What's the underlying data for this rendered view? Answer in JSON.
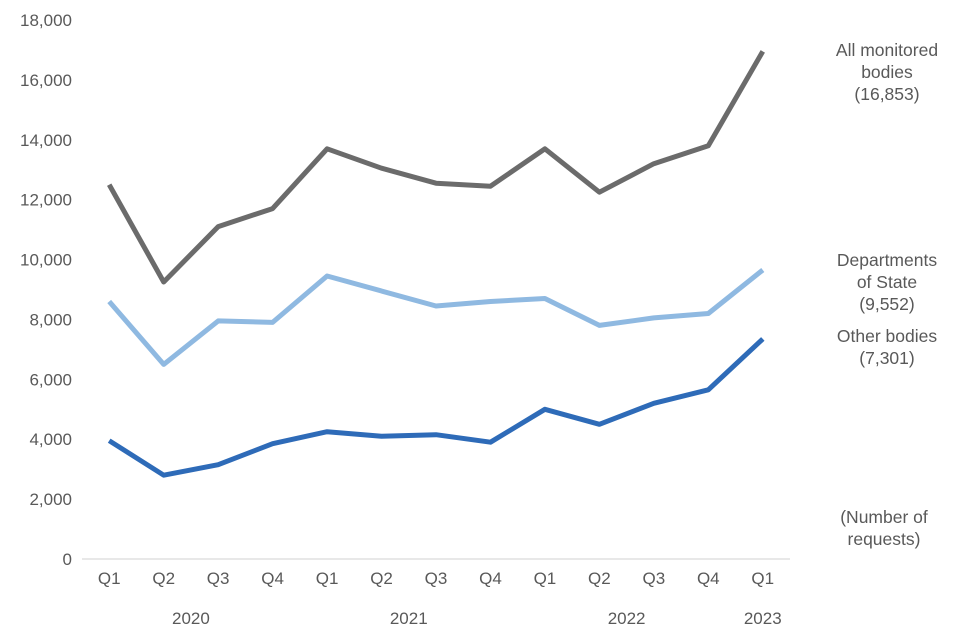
{
  "chart_data": {
    "type": "line",
    "categories": [
      "Q1",
      "Q2",
      "Q3",
      "Q4",
      "Q1",
      "Q2",
      "Q3",
      "Q4",
      "Q1",
      "Q2",
      "Q3",
      "Q4",
      "Q1"
    ],
    "year_labels": [
      {
        "text": "2020",
        "span": [
          0,
          3
        ]
      },
      {
        "text": "2021",
        "span": [
          4,
          7
        ]
      },
      {
        "text": "2022",
        "span": [
          8,
          11
        ]
      },
      {
        "text": "2023",
        "span": [
          12,
          12
        ]
      }
    ],
    "ylim": [
      0,
      18000
    ],
    "yticks": [
      0,
      2000,
      4000,
      6000,
      8000,
      10000,
      12000,
      14000,
      16000,
      18000
    ],
    "ytick_labels": [
      "0",
      "2,000",
      "4,000",
      "6,000",
      "8,000",
      "10,000",
      "12,000",
      "14,000",
      "16,000",
      "18,000"
    ],
    "unit_note_lines": [
      "(Number of",
      "requests)"
    ],
    "grid": false,
    "series": [
      {
        "key": "all",
        "label_lines": [
          "All monitored",
          "bodies",
          "(16,853)"
        ],
        "color": "#6b6b6b",
        "values": [
          12500,
          9250,
          11100,
          11700,
          13700,
          13050,
          12550,
          12450,
          13700,
          12250,
          13200,
          13800,
          16950
        ]
      },
      {
        "key": "dos",
        "label_lines": [
          "Departments",
          "of State",
          "(9,552)"
        ],
        "color": "#8fb9e1",
        "values": [
          8600,
          6500,
          7950,
          7900,
          9450,
          8950,
          8450,
          8600,
          8700,
          7800,
          8050,
          8200,
          9650
        ]
      },
      {
        "key": "other",
        "label_lines": [
          "Other bodies",
          "(7,301)"
        ],
        "color": "#2e6bb8",
        "values": [
          3950,
          2800,
          3150,
          3850,
          4250,
          4100,
          4150,
          3900,
          5000,
          4500,
          5200,
          5650,
          7350
        ]
      }
    ]
  }
}
